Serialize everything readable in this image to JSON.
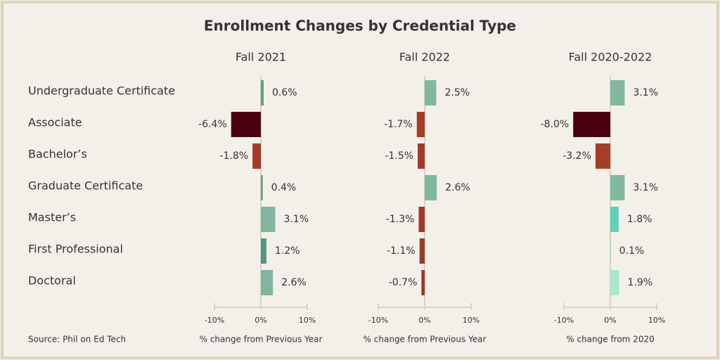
{
  "title": "Enrollment Changes by Credential Type",
  "source": "Source: Phil on Ed Tech",
  "categories": [
    "Undergraduate Certificate",
    "Associate",
    "Bachelor’s",
    "Graduate Certificate",
    "Master’s",
    "First Professional",
    "Doctoral"
  ],
  "chart_data": [
    {
      "type": "bar",
      "orientation": "horizontal",
      "subtitle": "Fall 2021",
      "values": [
        0.6,
        -6.4,
        -1.8,
        0.4,
        3.1,
        1.2,
        2.6
      ],
      "value_labels": [
        "0.6%",
        "-6.4%",
        "-1.8%",
        "0.4%",
        "3.1%",
        "1.2%",
        "2.6%"
      ],
      "colors": [
        "#5b9e89",
        "#4a0010",
        "#a33b27",
        "#5b9e89",
        "#80b5a0",
        "#4f9784",
        "#80b5a0"
      ],
      "xlim": [
        -10,
        10
      ],
      "xticks": [
        {
          "value": -10,
          "label": "-10%"
        },
        {
          "value": 0,
          "label": "0%"
        },
        {
          "value": 10,
          "label": "10%"
        }
      ],
      "xlabel": "% change from Previous Year"
    },
    {
      "type": "bar",
      "orientation": "horizontal",
      "subtitle": "Fall 2022",
      "values": [
        2.5,
        -1.7,
        -1.5,
        2.6,
        -1.3,
        -1.1,
        -0.7
      ],
      "value_labels": [
        "2.5%",
        "-1.7%",
        "-1.5%",
        "2.6%",
        "-1.3%",
        "-1.1%",
        "-0.7%"
      ],
      "colors": [
        "#80b8a0",
        "#a53c28",
        "#a33b27",
        "#80b8a0",
        "#9e3a28",
        "#9c3a28",
        "#983828"
      ],
      "xlim": [
        -10,
        10
      ],
      "xticks": [
        {
          "value": -10,
          "label": "-10%"
        },
        {
          "value": 0,
          "label": "0%"
        },
        {
          "value": 10,
          "label": "10%"
        }
      ],
      "xlabel": "% change from Previous Year"
    },
    {
      "type": "bar",
      "orientation": "horizontal",
      "subtitle": "Fall 2020-2022",
      "values": [
        3.1,
        -8.0,
        -3.2,
        3.1,
        1.8,
        0.1,
        1.9
      ],
      "value_labels": [
        "3.1%",
        "-8.0%",
        "-3.2%",
        "3.1%",
        "1.8%",
        "0.1%",
        "1.9%"
      ],
      "colors": [
        "#80b8a0",
        "#4a0010",
        "#a53c28",
        "#80b8a0",
        "#5fd0b8",
        "#8fd0bf",
        "#a8e6d0"
      ],
      "xlim": [
        -10,
        10
      ],
      "xticks": [
        {
          "value": -10,
          "label": "-10%"
        },
        {
          "value": 0,
          "label": "0%"
        },
        {
          "value": 10,
          "label": "10%"
        }
      ],
      "xlabel": "% change from 2020"
    }
  ]
}
